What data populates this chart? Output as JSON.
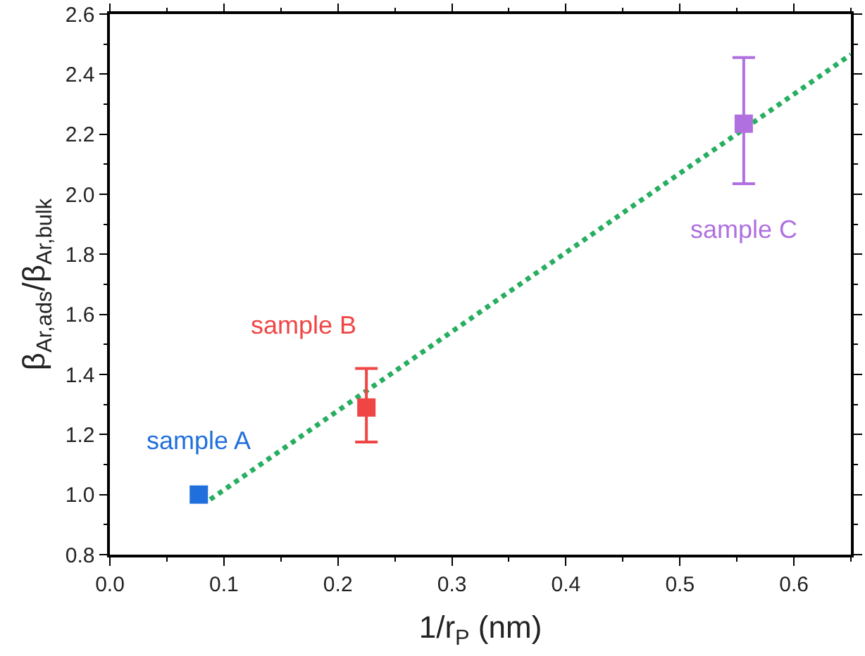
{
  "chart_data": {
    "type": "scatter",
    "xlabel": "1/r$_{P}$ (nm)",
    "ylabel": "β$_{Ar,ads}$/β$_{Ar,bulk}$",
    "xlim": [
      0,
      0.65
    ],
    "xticks": [
      {
        "value": 0,
        "label": "0.0"
      },
      0.1,
      0.2,
      0.3,
      0.4,
      0.5,
      0.6
    ],
    "ylim": [
      0.8,
      2.6
    ],
    "yticks": [
      0.8,
      {
        "value": 1,
        "label": "1.0"
      },
      1.2,
      1.4,
      1.6,
      1.8,
      {
        "value": 2,
        "label": "2.0"
      },
      2.2,
      2.4,
      2.6
    ],
    "legend": false,
    "marker": "square",
    "series": [
      {
        "type": "line",
        "color": "#27ae60",
        "line_style": "dotted",
        "marker": "none",
        "x": [
          0.088,
          0.65
        ],
        "values": [
          0.984,
          2.465
        ]
      },
      {
        "name": "sample A",
        "color": "#1f6fdc",
        "x": [
          0.078
        ],
        "values": [
          1.0
        ]
      },
      {
        "name": "sample B",
        "color": "#f04545",
        "x": [
          0.225
        ],
        "values": [
          1.29
        ],
        "errors": [
          [
            1.175,
            1.42
          ]
        ]
      },
      {
        "name": "sample C",
        "color": "#b070e0",
        "x": [
          0.556
        ],
        "values": [
          2.235
        ],
        "errors": [
          [
            2.035,
            2.455
          ]
        ]
      }
    ]
  }
}
